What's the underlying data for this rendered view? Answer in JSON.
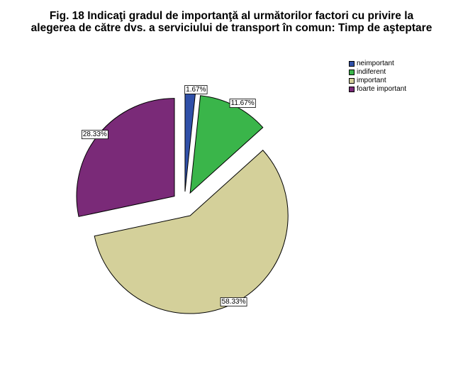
{
  "title_lines": [
    "Fig. 18   Indicaţi gradul de importanţă al următorilor factori cu privire la",
    "alegerea de către dvs. a serviciului de transport în comun: Timp de aşteptare"
  ],
  "legend": [
    {
      "label": "neimportant",
      "color": "#3050a8"
    },
    {
      "label": "indiferent",
      "color": "#3ab54a"
    },
    {
      "label": "important",
      "color": "#d4d09a"
    },
    {
      "label": "foarte important",
      "color": "#7a2a78"
    }
  ],
  "chart_data": {
    "type": "pie",
    "title": "Fig. 18   Indicaţi gradul de importanţă al următorilor factori cu privire la alegerea de către dvs. a serviciului de transport în comun: Timp de aşteptare",
    "categories": [
      "neimportant",
      "indiferent",
      "important",
      "foarte important"
    ],
    "values": [
      1.67,
      11.67,
      58.33,
      28.33
    ],
    "labels": [
      "1.67%",
      "11.67%",
      "58.33%",
      "28.33%"
    ],
    "colors": [
      "#3050a8",
      "#3ab54a",
      "#d4d09a",
      "#7a2a78"
    ],
    "exploded": true,
    "legend_position": "top-right"
  }
}
